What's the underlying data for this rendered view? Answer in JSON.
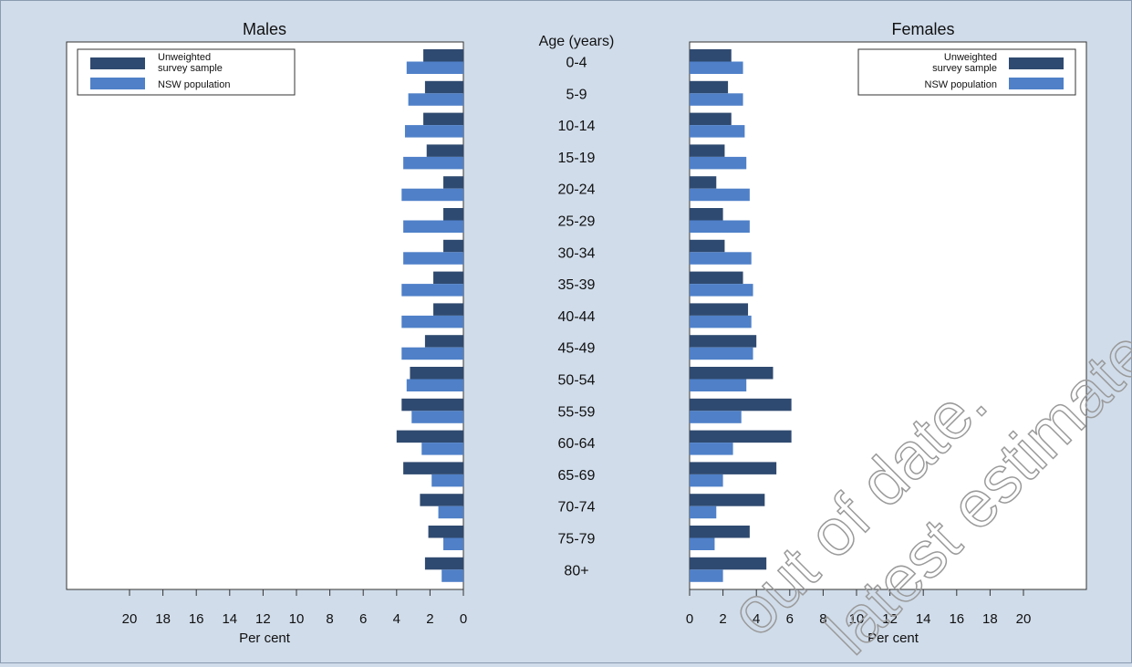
{
  "chart_data": {
    "type": "bar",
    "orientation": "horizontal",
    "layout": "population-pyramid",
    "center_label": "Age (years)",
    "categories": [
      "0-4",
      "5-9",
      "10-14",
      "15-19",
      "20-24",
      "25-29",
      "30-34",
      "35-39",
      "40-44",
      "45-49",
      "50-54",
      "55-59",
      "60-64",
      "65-69",
      "70-74",
      "75-79",
      "80+"
    ],
    "xlabel": "Per cent",
    "xlim": [
      0,
      23
    ],
    "ticks": [
      0,
      2,
      4,
      6,
      8,
      10,
      12,
      14,
      16,
      18,
      20
    ],
    "grid": false,
    "colors": {
      "sample": "#2f4a70",
      "population": "#4f80c8"
    },
    "panels": [
      {
        "title": "Males",
        "direction": "left",
        "legend_position": "top-left",
        "series": [
          {
            "name": "Unweighted survey sample",
            "values": [
              2.4,
              2.3,
              2.4,
              2.2,
              1.2,
              1.2,
              1.2,
              1.8,
              1.8,
              2.3,
              3.2,
              3.7,
              4.0,
              3.6,
              2.6,
              2.1,
              2.3
            ]
          },
          {
            "name": "NSW population",
            "values": [
              3.4,
              3.3,
              3.5,
              3.6,
              3.7,
              3.6,
              3.6,
              3.7,
              3.7,
              3.7,
              3.4,
              3.1,
              2.5,
              1.9,
              1.5,
              1.2,
              1.3
            ]
          }
        ]
      },
      {
        "title": "Females",
        "direction": "right",
        "legend_position": "top-right",
        "series": [
          {
            "name": "Unweighted survey sample",
            "values": [
              2.5,
              2.3,
              2.5,
              2.1,
              1.6,
              2.0,
              2.1,
              3.2,
              3.5,
              4.0,
              5.0,
              6.1,
              6.1,
              5.2,
              4.5,
              3.6,
              4.6
            ]
          },
          {
            "name": "NSW population",
            "values": [
              3.2,
              3.2,
              3.3,
              3.4,
              3.6,
              3.6,
              3.7,
              3.8,
              3.7,
              3.8,
              3.4,
              3.1,
              2.6,
              2.0,
              1.6,
              1.5,
              2.0
            ]
          }
        ]
      }
    ]
  },
  "legend": {
    "sample_line1": "Unweighted",
    "sample_line2": "survey sample",
    "population": "NSW population"
  },
  "watermark": {
    "line1": "out of date.",
    "line2": "latest estimates."
  }
}
